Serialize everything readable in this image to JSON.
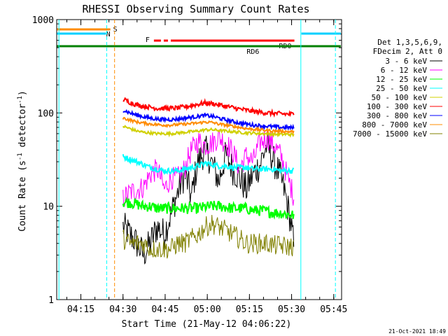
{
  "chart_data": {
    "type": "line",
    "title": "RHESSI Observing Summary Count Rates",
    "xlabel": "Start Time (21-May-12 04:06:22)",
    "ylabel_main": "Count Rate (s",
    "ylabel_sup1": "-1",
    "ylabel_mid": " detector",
    "ylabel_sup2": "-1",
    "ylabel_end": ")",
    "yscale": "log",
    "ylim": [
      1,
      1000
    ],
    "x_tick_labels": [
      "04:15",
      "04:30",
      "04:45",
      "05:00",
      "05:15",
      "05:30",
      "05:45"
    ],
    "x_tick_minutes": [
      255,
      270,
      285,
      300,
      315,
      330,
      345
    ],
    "xlim_minutes": [
      246.4,
      347.8
    ],
    "y_tick_labels": [
      "1",
      "10",
      "100",
      "1000"
    ],
    "y_tick_values": [
      1,
      10,
      100,
      1000
    ],
    "legend_header": [
      "Det 1,3,5,6,9,",
      "FDecim 2, Att 0"
    ],
    "timestamp": "21-Oct-2021 18:49",
    "flags": {
      "S": {
        "label": "S",
        "color": "#ff8c00"
      },
      "N": {
        "label": "N",
        "color": "#00d0ff"
      },
      "F": {
        "label": "F",
        "color": "#ff0000"
      },
      "RD0": {
        "label": "RD0",
        "color": "#007000"
      },
      "RD6": {
        "label": "RD6",
        "color": "#008000"
      }
    },
    "series": [
      {
        "name": "3 - 6 keV",
        "color": "#000000",
        "level": [
          6,
          5,
          4,
          3,
          4,
          6,
          5,
          8,
          14,
          22,
          12,
          30,
          40,
          28,
          18,
          35,
          25,
          20,
          15,
          22,
          28,
          45,
          30,
          20,
          10,
          3
        ]
      },
      {
        "name": "6 - 12 keV",
        "color": "#ff00ff",
        "level": [
          12,
          14,
          15,
          16,
          22,
          25,
          15,
          20,
          20,
          25,
          40,
          50,
          45,
          48,
          55,
          48,
          38,
          25,
          35,
          30,
          48,
          55,
          45,
          35,
          20,
          12
        ]
      },
      {
        "name": "12 - 25 keV",
        "color": "#00ff00",
        "level": [
          11,
          11,
          10.5,
          10,
          10,
          9.5,
          9.5,
          9.5,
          9.5,
          9.5,
          9.5,
          9.5,
          9.8,
          10,
          10,
          9.8,
          9.5,
          9.5,
          9.5,
          9,
          9,
          8.8,
          8.5,
          8.5,
          8.2,
          8
        ]
      },
      {
        "name": "25 - 50 keV",
        "color": "#00ffff",
        "level": [
          34,
          32,
          30,
          28,
          26,
          25,
          24,
          24,
          24,
          25,
          26,
          27,
          29,
          28,
          27,
          27,
          26,
          26,
          26,
          25,
          25,
          25,
          25,
          24,
          24,
          24
        ]
      },
      {
        "name": "50 - 100 keV",
        "color": "#d0d000",
        "level": [
          72,
          68,
          64,
          62,
          61,
          60,
          60,
          60,
          61,
          62,
          63,
          64,
          66,
          66,
          65,
          64,
          63,
          62,
          61,
          61,
          60,
          60,
          59,
          59,
          59,
          58
        ]
      },
      {
        "name": "100 - 300 keV",
        "color": "#ff0000",
        "level": [
          140,
          130,
          122,
          118,
          115,
          112,
          112,
          112,
          113,
          116,
          120,
          124,
          128,
          126,
          122,
          118,
          114,
          110,
          107,
          104,
          102,
          100,
          99,
          98,
          97,
          97
        ]
      },
      {
        "name": "300 - 800 keV",
        "color": "#0000ff",
        "level": [
          108,
          100,
          95,
          91,
          88,
          86,
          85,
          85,
          86,
          88,
          90,
          92,
          94,
          92,
          88,
          84,
          81,
          78,
          76,
          74,
          73,
          72,
          71,
          70,
          70,
          69
        ]
      },
      {
        "name": "800 - 7000 keV",
        "color": "#ff8c00",
        "level": [
          88,
          84,
          80,
          78,
          76,
          75,
          74,
          74,
          75,
          76,
          77,
          78,
          80,
          79,
          76,
          74,
          72,
          70,
          68,
          67,
          66,
          65,
          64,
          64,
          63,
          63
        ]
      },
      {
        "name": "7000 - 15000 keV",
        "color": "#808000",
        "level": [
          4.5,
          4,
          4,
          4,
          3.5,
          3.5,
          3.5,
          3.5,
          4,
          4,
          4.5,
          5,
          6,
          6.5,
          6,
          5.5,
          5,
          4.5,
          4,
          4,
          4,
          4,
          3.8,
          3.8,
          3.7,
          3.7
        ]
      }
    ],
    "level_x_range_minutes": [
      270,
      331
    ]
  }
}
